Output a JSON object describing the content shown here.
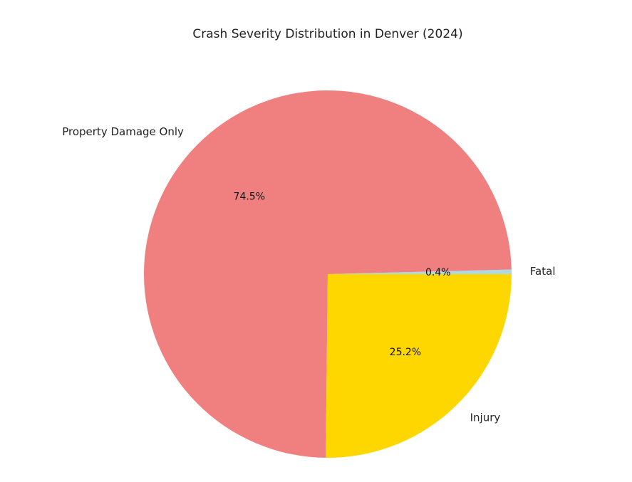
{
  "chart_data": {
    "type": "pie",
    "title": "Crash Severity Distribution in Denver (2024)",
    "start_angle": 0,
    "direction": "counterclockwise",
    "slices": [
      {
        "label": "Fatal",
        "value": 0.4,
        "pct_label": "0.4%",
        "color": "#ADD8E6"
      },
      {
        "label": "Property Damage Only",
        "value": 74.5,
        "pct_label": "74.5%",
        "color": "#F08080"
      },
      {
        "label": "Injury",
        "value": 25.2,
        "pct_label": "25.2%",
        "color": "#FFD700"
      }
    ]
  }
}
